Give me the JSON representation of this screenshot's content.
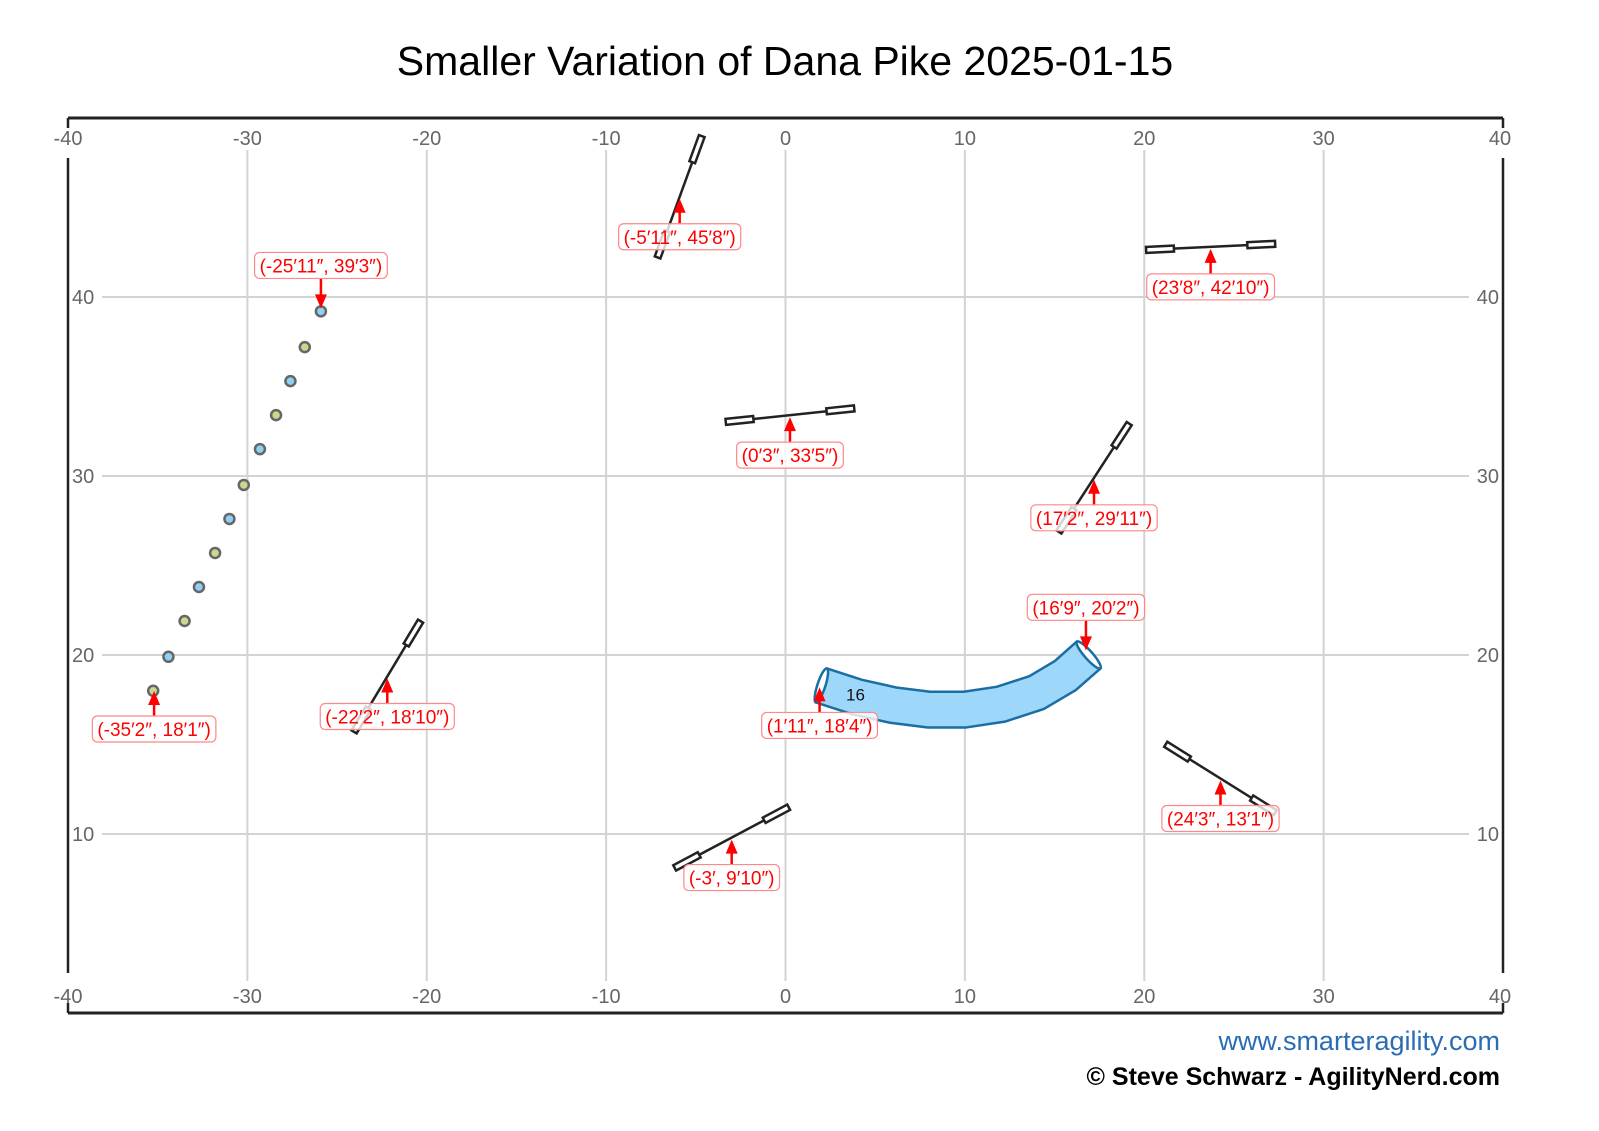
{
  "title": "Smaller Variation of Dana Pike 2025-01-15",
  "footer": {
    "website": "www.smarteragility.com",
    "copyright": "© Steve Schwarz - AgilityNerd.com"
  },
  "colors": {
    "label_red": "#ff0000",
    "tunnel_fill": "#9dd8fb",
    "tunnel_stroke": "#1a6ea3",
    "weave_green": "#c6d98c",
    "weave_blue": "#8fd0f5",
    "footer_blue": "#2a6db5"
  },
  "chart_data": {
    "type": "course-map",
    "xlim": [
      -40,
      40
    ],
    "ylim": [
      0,
      50
    ],
    "x_ticks": [
      -40,
      -30,
      -20,
      -10,
      0,
      10,
      20,
      30,
      40
    ],
    "y_ticks": [
      10,
      20,
      30,
      40
    ],
    "grid": true,
    "weave_poles": [
      [
        -35.25,
        18.0
      ],
      [
        -34.4,
        19.9
      ],
      [
        -33.5,
        21.9
      ],
      [
        -32.7,
        23.8
      ],
      [
        -31.8,
        25.7
      ],
      [
        -31.0,
        27.6
      ],
      [
        -30.2,
        29.5
      ],
      [
        -29.3,
        31.5
      ],
      [
        -28.4,
        33.4
      ],
      [
        -27.6,
        35.3
      ],
      [
        -26.8,
        37.2
      ],
      [
        -25.9,
        39.2
      ]
    ],
    "jumps": [
      {
        "x": -5.9,
        "y": 45.6,
        "angle": 70
      },
      {
        "x": 0.25,
        "y": 33.4,
        "angle": 6
      },
      {
        "x": 23.7,
        "y": 42.8,
        "angle": 2.7
      },
      {
        "x": 17.2,
        "y": 29.9,
        "angle": 57
      },
      {
        "x": -22.2,
        "y": 18.8,
        "angle": 59
      },
      {
        "x": -3.0,
        "y": 9.8,
        "angle": 28
      },
      {
        "x": 24.25,
        "y": 13.1,
        "angle": -32
      }
    ],
    "tunnel": {
      "number": "16",
      "number_at": [
        3.9,
        17.8
      ],
      "width": 2,
      "centerline": [
        [
          2.0,
          18.3
        ],
        [
          4,
          17.65
        ],
        [
          6,
          17.2
        ],
        [
          8,
          16.95
        ],
        [
          10,
          16.95
        ],
        [
          12,
          17.25
        ],
        [
          14,
          17.9
        ],
        [
          15.6,
          18.85
        ],
        [
          16.9,
          20.0
        ]
      ]
    },
    "labels": [
      {
        "text": "(-35′2″, 18′1″)",
        "x": -35.2,
        "y": 18.1,
        "position": "below"
      },
      {
        "text": "(-25′11″, 39′3″)",
        "x": -25.9,
        "y": 39.25,
        "position": "above"
      },
      {
        "text": "(-5′11″, 45′8″)",
        "x": -5.9,
        "y": 45.6,
        "position": "below"
      },
      {
        "text": "(0′3″, 33′5″)",
        "x": 0.25,
        "y": 33.4,
        "position": "below"
      },
      {
        "text": "(23′8″, 42′10″)",
        "x": 23.7,
        "y": 42.8,
        "position": "below"
      },
      {
        "text": "(17′2″, 29′11″)",
        "x": 17.2,
        "y": 29.9,
        "position": "below"
      },
      {
        "text": "(16′9″, 20′2″)",
        "x": 16.75,
        "y": 20.15,
        "position": "above"
      },
      {
        "text": "(1′11″, 18′4″)",
        "x": 1.9,
        "y": 18.3,
        "position": "below"
      },
      {
        "text": "(-22′2″, 18′10″)",
        "x": -22.2,
        "y": 18.8,
        "position": "below"
      },
      {
        "text": "(-3′, 9′10″)",
        "x": -3.0,
        "y": 9.8,
        "position": "below"
      },
      {
        "text": "(24′3″, 13′1″)",
        "x": 24.25,
        "y": 13.1,
        "position": "below"
      }
    ]
  }
}
